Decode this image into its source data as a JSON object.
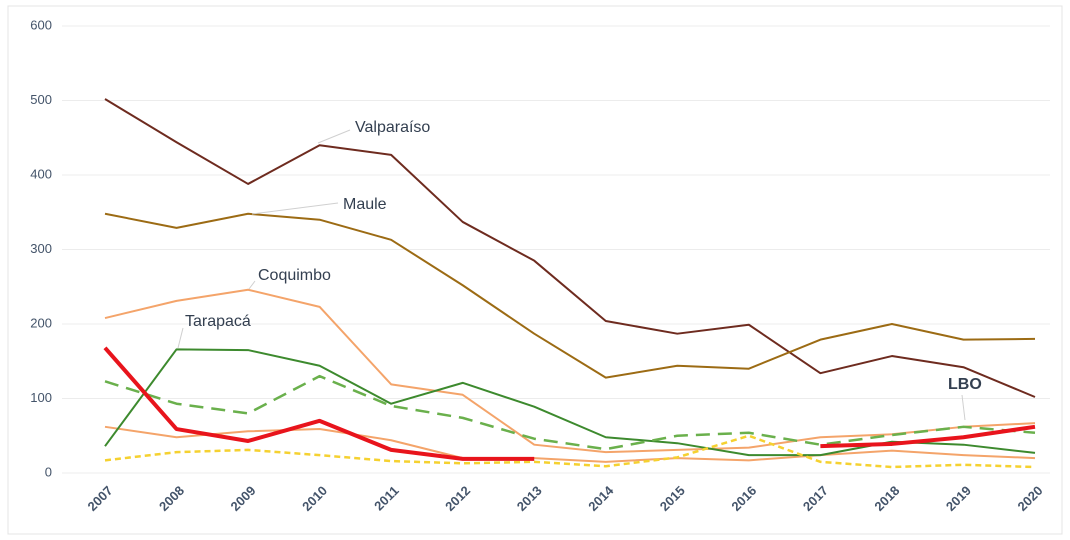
{
  "chart_data": {
    "type": "line",
    "x": [
      2007,
      2008,
      2009,
      2010,
      2011,
      2012,
      2013,
      2014,
      2015,
      2016,
      2017,
      2018,
      2019,
      2020
    ],
    "xlim": [
      2007,
      2020
    ],
    "ylim": [
      0,
      600
    ],
    "yticks": [
      0,
      100,
      200,
      300,
      400,
      500,
      600
    ],
    "grid": true,
    "series": [
      {
        "name": "Valparaíso",
        "color": "#6e2b1f",
        "style": "solid",
        "values": [
          502,
          444,
          388,
          440,
          427,
          337,
          285,
          204,
          187,
          199,
          134,
          157,
          142,
          102
        ]
      },
      {
        "name": "Maule",
        "color": "#9c6b14",
        "style": "solid",
        "values": [
          348,
          329,
          348,
          340,
          313,
          252,
          187,
          128,
          144,
          140,
          179,
          200,
          179,
          180
        ]
      },
      {
        "name": "Coquimbo",
        "color": "#f4a46a",
        "style": "solid",
        "values": [
          208,
          231,
          246,
          223,
          119,
          105,
          38,
          28,
          31,
          34,
          48,
          52,
          62,
          67
        ]
      },
      {
        "color": "#f4a46a",
        "style": "solid",
        "values": [
          62,
          48,
          56,
          59,
          44,
          20,
          20,
          15,
          20,
          17,
          24,
          30,
          24,
          20
        ]
      },
      {
        "name": "Tarapacá",
        "color": "#3d8a2e",
        "style": "solid",
        "values": [
          36,
          166,
          165,
          144,
          93,
          121,
          89,
          48,
          40,
          24,
          24,
          42,
          38,
          27
        ]
      },
      {
        "color": "#6ab04c",
        "style": "dashed",
        "values": [
          123,
          93,
          80,
          130,
          90,
          74,
          46,
          32,
          50,
          54,
          38,
          51,
          62,
          54
        ]
      },
      {
        "color": "#f5d130",
        "style": "dashed",
        "values": [
          17,
          28,
          31,
          24,
          16,
          13,
          15,
          9,
          21,
          50,
          15,
          8,
          11,
          8
        ]
      },
      {
        "name": "LBO",
        "color": "#e8141c",
        "style": "solid",
        "values": [
          168,
          59,
          43,
          70,
          31,
          19,
          19,
          null,
          null,
          null,
          36,
          39,
          48,
          62
        ]
      }
    ]
  }
}
